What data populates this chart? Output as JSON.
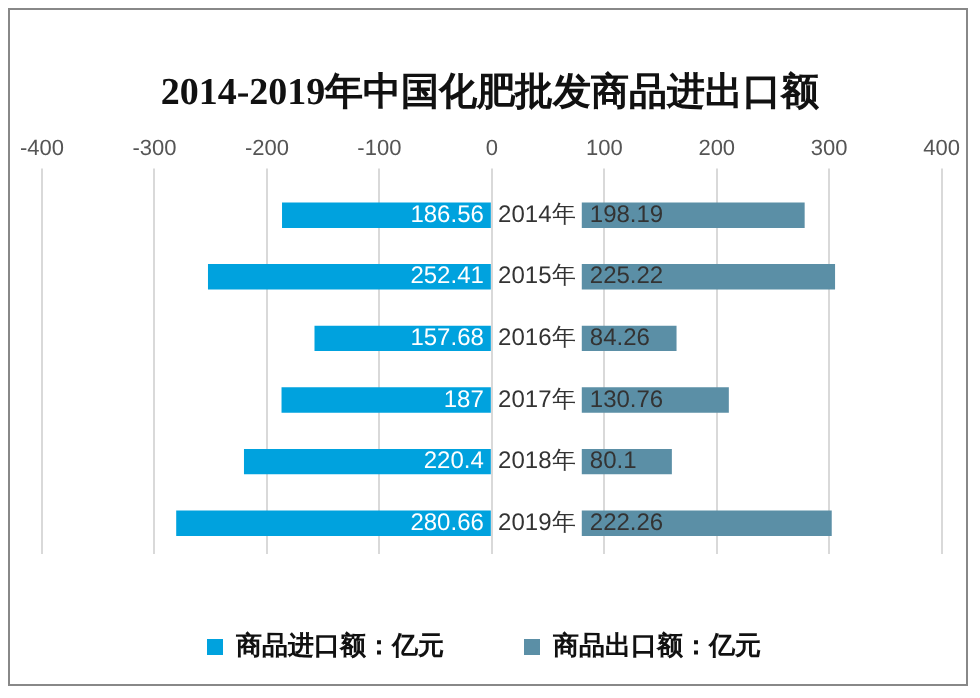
{
  "chart_data": {
    "type": "bar",
    "orientation": "horizontal",
    "title": "2014-2019年中国化肥批发商品进出口额",
    "categories": [
      "2014年",
      "2015年",
      "2016年",
      "2017年",
      "2018年",
      "2019年"
    ],
    "series": [
      {
        "name": "商品进口额：亿元",
        "color": "#00a2de",
        "values": [
          -186.56,
          -252.41,
          -157.68,
          -187,
          -220.4,
          -280.66
        ],
        "base": [
          0,
          0,
          0,
          0,
          0,
          0
        ],
        "value_labels": [
          "186.56",
          "252.41",
          "157.68",
          "187",
          "220.4",
          "280.66"
        ]
      },
      {
        "name": "商品出口额：亿元",
        "color": "#5b8fa6",
        "values": [
          198.19,
          225.22,
          84.26,
          130.76,
          80.1,
          222.26
        ],
        "base": [
          80,
          80,
          80,
          80,
          80,
          80
        ],
        "value_labels": [
          "198.19",
          "225.22",
          "84.26",
          "130.76",
          "80.1",
          "222.26"
        ]
      }
    ],
    "xlim": [
      -400,
      400
    ],
    "xticks": [
      -400,
      -300,
      -200,
      -100,
      0,
      100,
      200,
      300,
      400
    ],
    "grid": "x",
    "legend": "bottom"
  }
}
